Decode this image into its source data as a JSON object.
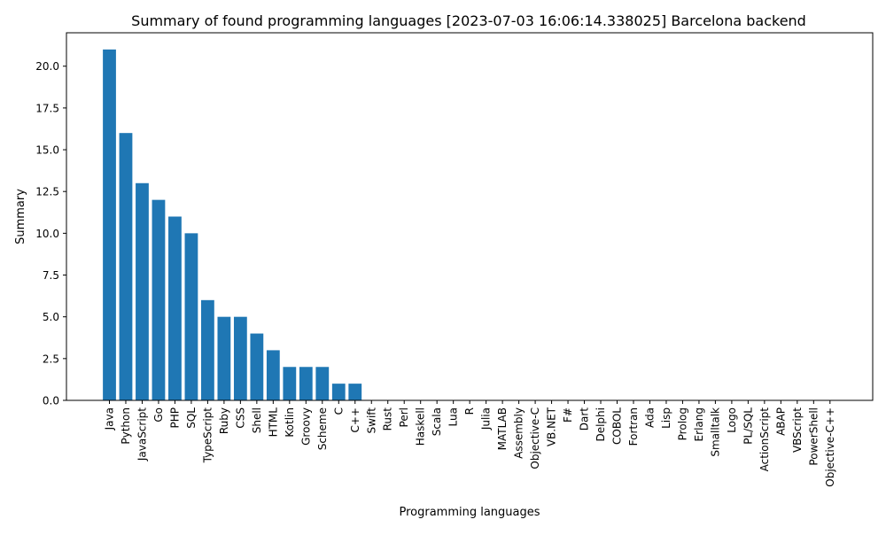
{
  "chart_data": {
    "type": "bar",
    "title": "Summary of found programming languages  [2023-07-03 16:06:14.338025] Barcelona backend",
    "xlabel": "Programming languages",
    "ylabel": "Summary",
    "ylim": [
      0,
      22
    ],
    "yticks": [
      "0.0",
      "2.5",
      "5.0",
      "7.5",
      "10.0",
      "12.5",
      "15.0",
      "17.5",
      "20.0"
    ],
    "grid": false,
    "bar_color": "#1f77b4",
    "categories": [
      "Java",
      "Python",
      "JavaScript",
      "Go",
      "PHP",
      "SQL",
      "TypeScript",
      "Ruby",
      "CSS",
      "Shell",
      "HTML",
      "Kotlin",
      "Groovy",
      "Scheme",
      "C",
      "C++",
      "Swift",
      "Rust",
      "Perl",
      "Haskell",
      "Scala",
      "Lua",
      "R",
      "Julia",
      "MATLAB",
      "Assembly",
      "Objective-C",
      "VB.NET",
      "F#",
      "Dart",
      "Delphi",
      "COBOL",
      "Fortran",
      "Ada",
      "Lisp",
      "Prolog",
      "Erlang",
      "Smalltalk",
      "Logo",
      "PL/SQL",
      "ActionScript",
      "ABAP",
      "VBScript",
      "PowerShell",
      "Objective-C++"
    ],
    "values": [
      21,
      16,
      13,
      12,
      11,
      10,
      6,
      5,
      5,
      4,
      3,
      2,
      2,
      2,
      1,
      1,
      0,
      0,
      0,
      0,
      0,
      0,
      0,
      0,
      0,
      0,
      0,
      0,
      0,
      0,
      0,
      0,
      0,
      0,
      0,
      0,
      0,
      0,
      0,
      0,
      0,
      0,
      0,
      0,
      0
    ]
  }
}
